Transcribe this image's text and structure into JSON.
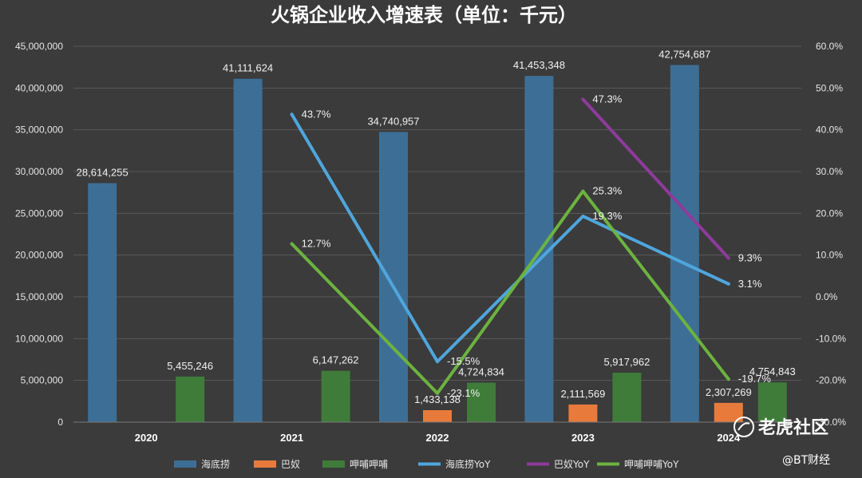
{
  "chart_data": {
    "type": "bar",
    "title": "火锅企业收入增速表（单位：千元）",
    "categories": [
      "2020",
      "2021",
      "2022",
      "2023",
      "2024"
    ],
    "ylim": [
      0,
      45000000
    ],
    "y2lim": [
      -30,
      60
    ],
    "yticks": [
      "45,000,000",
      "40,000,000",
      "35,000,000",
      "30,000,000",
      "25,000,000",
      "20,000,000",
      "15,000,000",
      "10,000,000",
      "5,000,000",
      "0"
    ],
    "y2ticks": [
      "60.0%",
      "50.0%",
      "40.0%",
      "30.0%",
      "20.0%",
      "10.0%",
      "0.0%",
      "-10.0%",
      "-20.0%",
      "-30.0%"
    ],
    "legend_position": "bottom",
    "grid": true,
    "series": [
      {
        "name": "海底捞",
        "kind": "bar",
        "color": "#3d6f96",
        "values": [
          28614255,
          41111624,
          34740957,
          41453348,
          42754687
        ],
        "labels": [
          "28,614,255",
          "41,111,624",
          "34,740,957",
          "41,453,348",
          "42,754,687"
        ]
      },
      {
        "name": "巴奴",
        "kind": "bar",
        "color": "#e87b3c",
        "values": [
          null,
          null,
          1433138,
          2111569,
          2307269
        ],
        "labels": [
          "",
          "",
          "1,433,138",
          "2,111,569",
          "2,307,269"
        ]
      },
      {
        "name": "呷哺呷哺",
        "kind": "bar",
        "color": "#3f7c3a",
        "values": [
          5455246,
          6147262,
          4724834,
          5917962,
          4754843
        ],
        "labels": [
          "5,455,246",
          "6,147,262",
          "4,724,834",
          "5,917,962",
          "4,754,843"
        ]
      },
      {
        "name": "海底捞YoY",
        "kind": "line",
        "color": "#4fa6dc",
        "values": [
          null,
          43.7,
          -15.5,
          19.3,
          3.1
        ],
        "labels": [
          "",
          "43.7%",
          "-15.5%",
          "19.3%",
          "3.1%"
        ]
      },
      {
        "name": "巴奴YoY",
        "kind": "line",
        "color": "#8e3b9c",
        "values": [
          null,
          null,
          null,
          47.3,
          9.3
        ],
        "labels": [
          "",
          "",
          "",
          "47.3%",
          "9.3%"
        ]
      },
      {
        "name": "呷哺呷哺YoY",
        "kind": "line",
        "color": "#6cb33f",
        "values": [
          null,
          12.7,
          -23.1,
          25.3,
          -19.7
        ],
        "labels": [
          "",
          "12.7%",
          "-23.1%",
          "25.3%",
          "-19.7%"
        ]
      }
    ]
  },
  "watermark": {
    "main": "老虎社区",
    "sub": "@BT财经"
  }
}
